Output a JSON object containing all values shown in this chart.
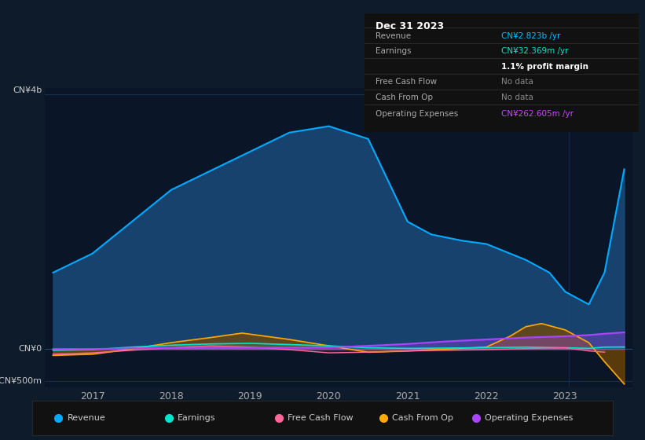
{
  "bg_color": "#0d1b2a",
  "plot_bg_color": "#0a1628",
  "grid_color": "#1e3a5f",
  "title_area": {
    "date": "Dec 31 2023",
    "rows": [
      {
        "label": "Revenue",
        "value": "CN¥2.823b /yr",
        "value_color": "#00bfff",
        "dimmed": false
      },
      {
        "label": "Earnings",
        "value": "CN¥32.369m /yr",
        "value_color": "#00e5cc",
        "dimmed": false
      },
      {
        "label": "",
        "value": "1.1% profit margin",
        "value_color": "#ffffff",
        "dimmed": false
      },
      {
        "label": "Free Cash Flow",
        "value": "No data",
        "value_color": "#888888",
        "dimmed": true
      },
      {
        "label": "Cash From Op",
        "value": "No data",
        "value_color": "#888888",
        "dimmed": true
      },
      {
        "label": "Operating Expenses",
        "value": "CN¥262.605m /yr",
        "value_color": "#cc44ff",
        "dimmed": false
      }
    ]
  },
  "ylabel_top": "CN¥4b",
  "ylabel_mid": "CN¥0",
  "ylabel_bot": "-CN¥500m",
  "x_ticks": [
    2017,
    2018,
    2019,
    2020,
    2021,
    2022,
    2023
  ],
  "ylim": [
    -600,
    4100
  ],
  "revenue": {
    "x": [
      2016.5,
      2017.0,
      2017.5,
      2018.0,
      2018.5,
      2019.0,
      2019.5,
      2020.0,
      2020.5,
      2021.0,
      2021.3,
      2021.7,
      2022.0,
      2022.5,
      2022.8,
      2023.0,
      2023.3,
      2023.5,
      2023.75
    ],
    "y": [
      1200,
      1500,
      2000,
      2500,
      2800,
      3100,
      3400,
      3500,
      3300,
      2000,
      1800,
      1700,
      1650,
      1400,
      1200,
      900,
      700,
      1200,
      2823
    ],
    "color": "#00aaff",
    "fill_color": "#1a4a7a"
  },
  "earnings": {
    "x": [
      2016.5,
      2017.0,
      2017.5,
      2018.0,
      2018.5,
      2019.0,
      2019.5,
      2020.0,
      2020.5,
      2021.0,
      2021.5,
      2022.0,
      2022.5,
      2023.0,
      2023.3,
      2023.5,
      2023.75
    ],
    "y": [
      -20,
      -10,
      30,
      60,
      80,
      90,
      70,
      50,
      20,
      10,
      15,
      20,
      30,
      20,
      10,
      30,
      32
    ],
    "color": "#00e5cc"
  },
  "free_cash_flow": {
    "x": [
      2016.5,
      2017.0,
      2017.5,
      2018.0,
      2018.5,
      2019.0,
      2019.5,
      2020.0,
      2020.5,
      2021.0,
      2021.5,
      2022.0,
      2022.3,
      2022.6,
      2023.0,
      2023.3,
      2023.5
    ],
    "y": [
      -80,
      -60,
      -20,
      20,
      50,
      30,
      -10,
      -60,
      -50,
      -30,
      -20,
      -10,
      0,
      10,
      20,
      -30,
      -50
    ],
    "color": "#ff6699"
  },
  "cash_from_op": {
    "x": [
      2016.5,
      2017.0,
      2017.5,
      2018.0,
      2018.5,
      2018.9,
      2019.2,
      2019.5,
      2020.0,
      2020.5,
      2021.0,
      2021.5,
      2022.0,
      2022.3,
      2022.5,
      2022.7,
      2023.0,
      2023.3,
      2023.5,
      2023.75
    ],
    "y": [
      -100,
      -80,
      0,
      100,
      180,
      250,
      200,
      150,
      50,
      -50,
      -30,
      0,
      30,
      200,
      350,
      400,
      300,
      100,
      -200,
      -550
    ],
    "color": "#ffaa00",
    "fill_color": "#7a4a00"
  },
  "operating_expenses": {
    "x": [
      2016.5,
      2017.0,
      2017.5,
      2018.0,
      2018.5,
      2019.0,
      2019.5,
      2020.0,
      2020.5,
      2021.0,
      2021.5,
      2022.0,
      2022.5,
      2023.0,
      2023.3,
      2023.5,
      2023.75
    ],
    "y": [
      0,
      0,
      10,
      15,
      20,
      20,
      20,
      25,
      50,
      80,
      120,
      150,
      180,
      200,
      220,
      240,
      262
    ],
    "color": "#aa44ff"
  },
  "legend_items": [
    {
      "label": "Revenue",
      "color": "#00aaff"
    },
    {
      "label": "Earnings",
      "color": "#00e5cc"
    },
    {
      "label": "Free Cash Flow",
      "color": "#ff6699"
    },
    {
      "label": "Cash From Op",
      "color": "#ffaa00"
    },
    {
      "label": "Operating Expenses",
      "color": "#aa44ff"
    }
  ]
}
